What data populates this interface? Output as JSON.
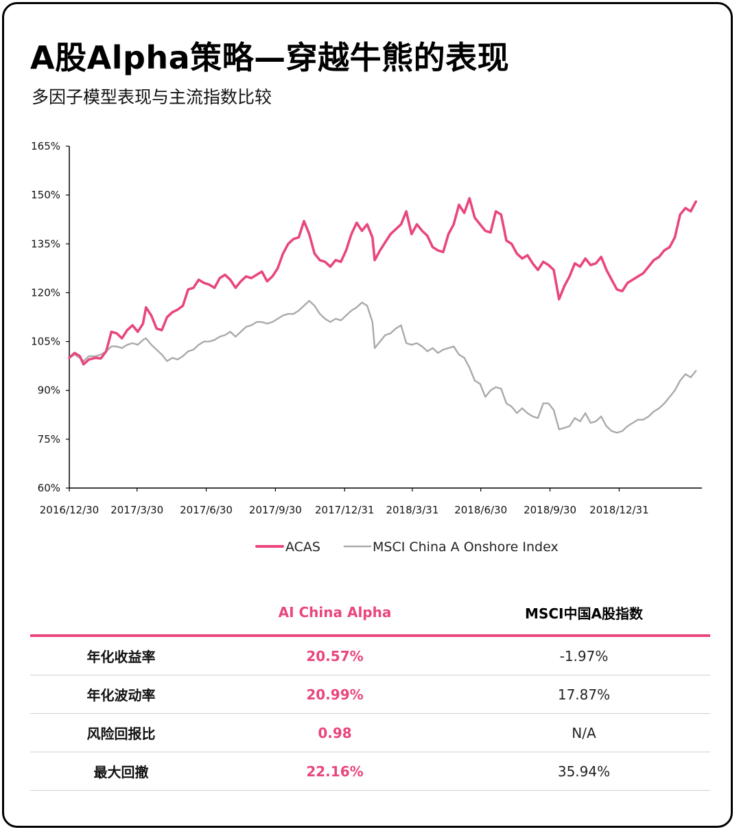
{
  "header": {
    "title": "A股Alpha策略—穿越牛熊的表现",
    "subtitle": "多因子模型表现与主流指数比较"
  },
  "colors": {
    "acas": "#e8467c",
    "msci": "#a9a9a9",
    "axis": "#000000",
    "rule": "#e8467c"
  },
  "chart_data": {
    "type": "line",
    "title": "",
    "xlabel": "",
    "ylabel": "",
    "ylim": [
      60,
      165
    ],
    "y_ticks": [
      60,
      75,
      90,
      105,
      120,
      135,
      150,
      165
    ],
    "y_tick_labels": [
      "60%",
      "75%",
      "90%",
      "105%",
      "120%",
      "135%",
      "150%",
      "165%"
    ],
    "x_range": [
      "2016-12-30",
      "2019-04-20"
    ],
    "x_ticks": [
      "2016-12-30",
      "2017-03-30",
      "2017-06-30",
      "2017-09-30",
      "2017-12-31",
      "2018-03-31",
      "2018-06-30",
      "2018-09-30",
      "2018-12-31"
    ],
    "x_tick_labels": [
      "2016/12/30",
      "2017/3/30",
      "2017/6/30",
      "2017/9/30",
      "2017/12/31",
      "2018/3/31",
      "2018/6/30",
      "2018/9/30",
      "2018/12/31"
    ],
    "grid": false,
    "legend": "bottom",
    "series": [
      {
        "name": "ACAS",
        "color": "#e8467c",
        "points": [
          [
            "2016-12-30",
            100
          ],
          [
            "2017-01-06",
            101.5
          ],
          [
            "2017-01-13",
            100.5
          ],
          [
            "2017-01-18",
            98
          ],
          [
            "2017-01-25",
            99.5
          ],
          [
            "2017-02-03",
            100
          ],
          [
            "2017-02-10",
            99.8
          ],
          [
            "2017-02-17",
            102
          ],
          [
            "2017-02-24",
            108
          ],
          [
            "2017-03-03",
            107.5
          ],
          [
            "2017-03-10",
            106
          ],
          [
            "2017-03-17",
            108.5
          ],
          [
            "2017-03-24",
            110
          ],
          [
            "2017-03-31",
            108
          ],
          [
            "2017-04-07",
            110.5
          ],
          [
            "2017-04-11",
            115.5
          ],
          [
            "2017-04-18",
            113
          ],
          [
            "2017-04-25",
            109
          ],
          [
            "2017-05-02",
            108.5
          ],
          [
            "2017-05-09",
            112.5
          ],
          [
            "2017-05-16",
            114
          ],
          [
            "2017-05-23",
            114.8
          ],
          [
            "2017-05-30",
            116
          ],
          [
            "2017-06-06",
            121
          ],
          [
            "2017-06-13",
            121.5
          ],
          [
            "2017-06-20",
            124
          ],
          [
            "2017-06-27",
            123
          ],
          [
            "2017-07-04",
            122.5
          ],
          [
            "2017-07-11",
            121.5
          ],
          [
            "2017-07-18",
            124.5
          ],
          [
            "2017-07-25",
            125.5
          ],
          [
            "2017-08-01",
            124
          ],
          [
            "2017-08-08",
            121.5
          ],
          [
            "2017-08-15",
            123.5
          ],
          [
            "2017-08-22",
            125
          ],
          [
            "2017-08-29",
            124.5
          ],
          [
            "2017-09-05",
            125.5
          ],
          [
            "2017-09-12",
            126.5
          ],
          [
            "2017-09-19",
            123.5
          ],
          [
            "2017-09-26",
            125
          ],
          [
            "2017-10-03",
            127.5
          ],
          [
            "2017-10-10",
            132
          ],
          [
            "2017-10-17",
            135
          ],
          [
            "2017-10-24",
            136.5
          ],
          [
            "2017-10-31",
            137
          ],
          [
            "2017-11-07",
            142
          ],
          [
            "2017-11-14",
            138
          ],
          [
            "2017-11-21",
            132
          ],
          [
            "2017-11-28",
            130
          ],
          [
            "2017-12-05",
            129.5
          ],
          [
            "2017-12-12",
            128
          ],
          [
            "2017-12-19",
            130
          ],
          [
            "2017-12-26",
            129.5
          ],
          [
            "2018-01-02",
            133
          ],
          [
            "2018-01-09",
            138
          ],
          [
            "2018-01-16",
            141.5
          ],
          [
            "2018-01-23",
            139
          ],
          [
            "2018-01-30",
            141
          ],
          [
            "2018-02-06",
            137
          ],
          [
            "2018-02-09",
            130
          ],
          [
            "2018-02-16",
            133
          ],
          [
            "2018-02-23",
            135.5
          ],
          [
            "2018-03-02",
            138
          ],
          [
            "2018-03-09",
            139.5
          ],
          [
            "2018-03-16",
            141
          ],
          [
            "2018-03-23",
            145
          ],
          [
            "2018-03-30",
            138
          ],
          [
            "2018-04-06",
            141
          ],
          [
            "2018-04-13",
            139
          ],
          [
            "2018-04-20",
            137.5
          ],
          [
            "2018-04-27",
            134
          ],
          [
            "2018-05-04",
            133
          ],
          [
            "2018-05-11",
            132.5
          ],
          [
            "2018-05-18",
            138
          ],
          [
            "2018-05-25",
            141
          ],
          [
            "2018-06-01",
            147
          ],
          [
            "2018-06-08",
            144.5
          ],
          [
            "2018-06-15",
            149
          ],
          [
            "2018-06-22",
            143
          ],
          [
            "2018-06-29",
            141
          ],
          [
            "2018-07-06",
            139
          ],
          [
            "2018-07-13",
            138.5
          ],
          [
            "2018-07-20",
            145
          ],
          [
            "2018-07-27",
            144
          ],
          [
            "2018-08-03",
            136
          ],
          [
            "2018-08-10",
            135
          ],
          [
            "2018-08-17",
            132
          ],
          [
            "2018-08-24",
            130.5
          ],
          [
            "2018-08-31",
            131.5
          ],
          [
            "2018-09-07",
            129
          ],
          [
            "2018-09-14",
            127
          ],
          [
            "2018-09-21",
            129.5
          ],
          [
            "2018-09-28",
            128.5
          ],
          [
            "2018-10-05",
            127
          ],
          [
            "2018-10-12",
            118
          ],
          [
            "2018-10-19",
            122
          ],
          [
            "2018-10-26",
            125
          ],
          [
            "2018-11-02",
            129
          ],
          [
            "2018-11-09",
            128
          ],
          [
            "2018-11-16",
            130.5
          ],
          [
            "2018-11-23",
            128.5
          ],
          [
            "2018-11-30",
            129
          ],
          [
            "2018-12-07",
            131
          ],
          [
            "2018-12-14",
            127
          ],
          [
            "2018-12-21",
            124
          ],
          [
            "2018-12-28",
            121
          ],
          [
            "2019-01-04",
            120.5
          ],
          [
            "2019-01-11",
            123
          ],
          [
            "2019-01-18",
            124
          ],
          [
            "2019-01-25",
            125
          ],
          [
            "2019-02-01",
            126
          ],
          [
            "2019-02-08",
            128
          ],
          [
            "2019-02-15",
            130
          ],
          [
            "2019-02-22",
            131
          ],
          [
            "2019-03-01",
            133
          ],
          [
            "2019-03-08",
            134
          ],
          [
            "2019-03-15",
            137
          ],
          [
            "2019-03-22",
            144
          ],
          [
            "2019-03-29",
            146
          ],
          [
            "2019-04-05",
            145
          ],
          [
            "2019-04-12",
            148
          ]
        ]
      },
      {
        "name": "MSCI China A Onshore Index",
        "color": "#a9a9a9",
        "points": [
          [
            "2016-12-30",
            100
          ],
          [
            "2017-01-06",
            101
          ],
          [
            "2017-01-13",
            100
          ],
          [
            "2017-01-18",
            99
          ],
          [
            "2017-01-25",
            100.5
          ],
          [
            "2017-02-03",
            100.5
          ],
          [
            "2017-02-10",
            101
          ],
          [
            "2017-02-17",
            102
          ],
          [
            "2017-02-24",
            103.5
          ],
          [
            "2017-03-03",
            103.5
          ],
          [
            "2017-03-10",
            103
          ],
          [
            "2017-03-17",
            104
          ],
          [
            "2017-03-24",
            104.5
          ],
          [
            "2017-03-31",
            104
          ],
          [
            "2017-04-07",
            105.5
          ],
          [
            "2017-04-11",
            106
          ],
          [
            "2017-04-18",
            104
          ],
          [
            "2017-04-25",
            102.5
          ],
          [
            "2017-05-02",
            101
          ],
          [
            "2017-05-09",
            99
          ],
          [
            "2017-05-16",
            100
          ],
          [
            "2017-05-23",
            99.5
          ],
          [
            "2017-05-30",
            100.5
          ],
          [
            "2017-06-06",
            102
          ],
          [
            "2017-06-13",
            102.5
          ],
          [
            "2017-06-20",
            104
          ],
          [
            "2017-06-27",
            105
          ],
          [
            "2017-07-04",
            105
          ],
          [
            "2017-07-11",
            105.5
          ],
          [
            "2017-07-18",
            106.5
          ],
          [
            "2017-07-25",
            107
          ],
          [
            "2017-08-01",
            108
          ],
          [
            "2017-08-08",
            106.5
          ],
          [
            "2017-08-15",
            108
          ],
          [
            "2017-08-22",
            109.5
          ],
          [
            "2017-08-29",
            110
          ],
          [
            "2017-09-05",
            111
          ],
          [
            "2017-09-12",
            111
          ],
          [
            "2017-09-19",
            110.5
          ],
          [
            "2017-09-26",
            111
          ],
          [
            "2017-10-03",
            112
          ],
          [
            "2017-10-10",
            113
          ],
          [
            "2017-10-17",
            113.5
          ],
          [
            "2017-10-24",
            113.5
          ],
          [
            "2017-10-31",
            114.5
          ],
          [
            "2017-11-07",
            116
          ],
          [
            "2017-11-14",
            117.5
          ],
          [
            "2017-11-21",
            116
          ],
          [
            "2017-11-28",
            113.5
          ],
          [
            "2017-12-05",
            112
          ],
          [
            "2017-12-12",
            111
          ],
          [
            "2017-12-19",
            112
          ],
          [
            "2017-12-26",
            111.5
          ],
          [
            "2018-01-02",
            113
          ],
          [
            "2018-01-09",
            114.5
          ],
          [
            "2018-01-16",
            115.5
          ],
          [
            "2018-01-23",
            117
          ],
          [
            "2018-01-30",
            116
          ],
          [
            "2018-02-06",
            111
          ],
          [
            "2018-02-09",
            103
          ],
          [
            "2018-02-16",
            105
          ],
          [
            "2018-02-23",
            107
          ],
          [
            "2018-03-02",
            107.5
          ],
          [
            "2018-03-09",
            109
          ],
          [
            "2018-03-16",
            110
          ],
          [
            "2018-03-23",
            104.5
          ],
          [
            "2018-03-30",
            104
          ],
          [
            "2018-04-06",
            104.5
          ],
          [
            "2018-04-13",
            103.5
          ],
          [
            "2018-04-20",
            102
          ],
          [
            "2018-04-27",
            103
          ],
          [
            "2018-05-04",
            101.5
          ],
          [
            "2018-05-11",
            102.5
          ],
          [
            "2018-05-18",
            103
          ],
          [
            "2018-05-25",
            103.5
          ],
          [
            "2018-06-01",
            101
          ],
          [
            "2018-06-08",
            100
          ],
          [
            "2018-06-15",
            97
          ],
          [
            "2018-06-22",
            93
          ],
          [
            "2018-06-29",
            92
          ],
          [
            "2018-07-06",
            88
          ],
          [
            "2018-07-13",
            90
          ],
          [
            "2018-07-20",
            91
          ],
          [
            "2018-07-27",
            90.5
          ],
          [
            "2018-08-03",
            86
          ],
          [
            "2018-08-10",
            85
          ],
          [
            "2018-08-17",
            83
          ],
          [
            "2018-08-24",
            84.5
          ],
          [
            "2018-08-31",
            83
          ],
          [
            "2018-09-07",
            82
          ],
          [
            "2018-09-14",
            81.5
          ],
          [
            "2018-09-21",
            86
          ],
          [
            "2018-09-28",
            86
          ],
          [
            "2018-10-05",
            84
          ],
          [
            "2018-10-12",
            78
          ],
          [
            "2018-10-19",
            78.5
          ],
          [
            "2018-10-26",
            79
          ],
          [
            "2018-11-02",
            81.5
          ],
          [
            "2018-11-09",
            80.5
          ],
          [
            "2018-11-16",
            83
          ],
          [
            "2018-11-23",
            80
          ],
          [
            "2018-11-30",
            80.5
          ],
          [
            "2018-12-07",
            82
          ],
          [
            "2018-12-14",
            79
          ],
          [
            "2018-12-21",
            77.5
          ],
          [
            "2018-12-28",
            77
          ],
          [
            "2019-01-04",
            77.5
          ],
          [
            "2019-01-11",
            79
          ],
          [
            "2019-01-18",
            80
          ],
          [
            "2019-01-25",
            81
          ],
          [
            "2019-02-01",
            81
          ],
          [
            "2019-02-08",
            82
          ],
          [
            "2019-02-15",
            83.5
          ],
          [
            "2019-02-22",
            84.5
          ],
          [
            "2019-03-01",
            86
          ],
          [
            "2019-03-08",
            88
          ],
          [
            "2019-03-15",
            90
          ],
          [
            "2019-03-22",
            93
          ],
          [
            "2019-03-29",
            95
          ],
          [
            "2019-04-05",
            94
          ],
          [
            "2019-04-12",
            96
          ]
        ]
      }
    ]
  },
  "table": {
    "headers": [
      "",
      "AI China Alpha",
      "MSCI中国A股指数"
    ],
    "rows": [
      {
        "metric": "年化收益率",
        "acas": "20.57%",
        "msci": "-1.97%"
      },
      {
        "metric": "年化波动率",
        "acas": "20.99%",
        "msci": "17.87%"
      },
      {
        "metric": "风险回报比",
        "acas": "0.98",
        "msci": "N/A"
      },
      {
        "metric": "最大回撤",
        "acas": "22.16%",
        "msci": "35.94%"
      }
    ]
  }
}
